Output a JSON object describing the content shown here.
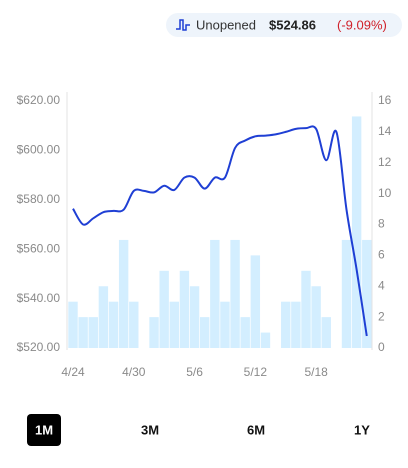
{
  "header": {
    "label": "Unopened",
    "price": "$524.86",
    "change": "(-9.09%)"
  },
  "chart_data": {
    "type": "combo",
    "categories": [
      "4/24",
      null,
      null,
      null,
      null,
      null,
      "4/30",
      null,
      null,
      null,
      null,
      null,
      "5/6",
      null,
      null,
      null,
      null,
      null,
      "5/12",
      null,
      null,
      null,
      null,
      null,
      "5/18",
      null,
      null,
      null,
      null,
      null
    ],
    "series": [
      {
        "type": "bar",
        "axis": "y2",
        "color": "#d3eeff",
        "values": [
          3,
          2,
          2,
          4,
          3,
          7,
          3,
          0,
          2,
          5,
          3,
          5,
          4,
          2,
          7,
          3,
          7,
          2,
          6,
          1,
          0,
          3,
          3,
          5,
          4,
          2,
          0,
          7,
          15,
          7
        ]
      },
      {
        "type": "line",
        "color": "#1f3fd4",
        "values": [
          576.4,
          570,
          572.5,
          575,
          575.5,
          576,
          583.6,
          583.6,
          583,
          585.7,
          584,
          589,
          589,
          584.5,
          589,
          589,
          601,
          604,
          605.7,
          606,
          606.5,
          607.5,
          608.7,
          609,
          608.7,
          596,
          607.5,
          576,
          551.7,
          524.86
        ]
      }
    ],
    "ylim": [
      520,
      620
    ],
    "yticks": [
      {
        "value": 520,
        "label": "$520.00"
      },
      {
        "value": 540,
        "label": "$540.00"
      },
      {
        "value": 560,
        "label": "$560.00"
      },
      {
        "value": 580,
        "label": "$580.00"
      },
      {
        "value": 600,
        "label": "$600.00"
      },
      {
        "value": 620,
        "label": "$620.00"
      }
    ],
    "y2lim": [
      0,
      16
    ],
    "y2ticks": [
      0,
      2,
      4,
      6,
      8,
      10,
      12,
      14,
      16
    ]
  },
  "ranges": {
    "options": [
      "1M",
      "3M",
      "6M",
      "1Y"
    ],
    "selected": "1M"
  }
}
